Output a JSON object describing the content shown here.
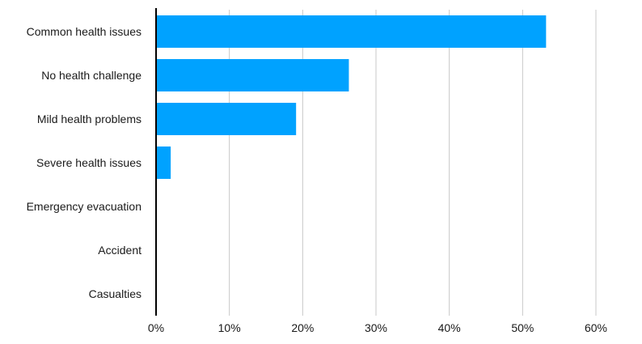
{
  "chart_data": {
    "type": "bar",
    "orientation": "horizontal",
    "title": "",
    "xlabel": "",
    "ylabel": "",
    "categories": [
      "Common health issues",
      "No health challenge",
      "Mild health problems",
      "Severe health issues",
      "Emergency evacuation",
      "Accident",
      "Casualties"
    ],
    "values": [
      53.2,
      26.3,
      19.1,
      2.0,
      0,
      0,
      0
    ],
    "xlim": [
      0,
      60
    ],
    "ticks": [
      "0%",
      "10%",
      "20%",
      "30%",
      "40%",
      "50%",
      "60%"
    ],
    "tick_values": [
      0,
      10,
      20,
      30,
      40,
      50,
      60
    ],
    "grid": "vertical",
    "legend": "none",
    "bar_color": "#00a2ff"
  }
}
